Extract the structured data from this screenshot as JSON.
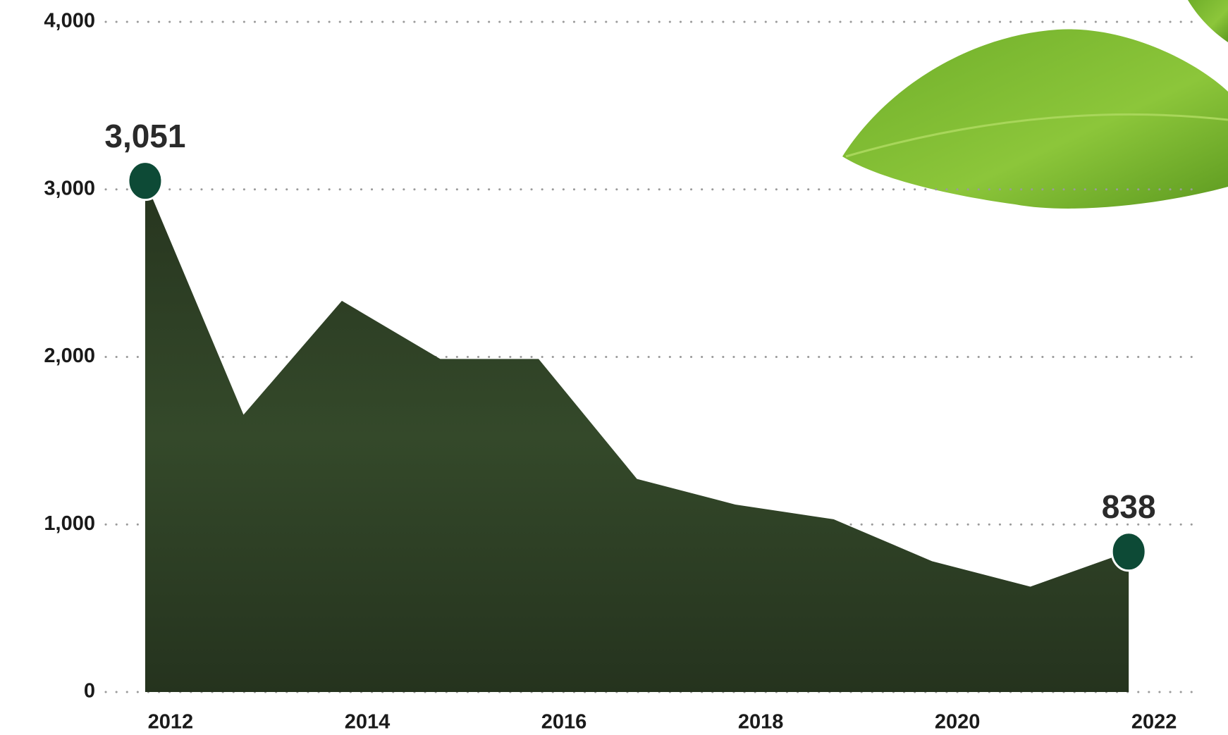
{
  "chart_data": {
    "type": "area",
    "x": [
      2012,
      2013,
      2014,
      2015,
      2016,
      2017,
      2018,
      2019,
      2020,
      2021,
      2022
    ],
    "values": [
      3051,
      1655,
      2335,
      1988,
      1988,
      1272,
      1119,
      1031,
      781,
      629,
      838
    ],
    "value_labels": [
      "3,051",
      null,
      null,
      null,
      null,
      null,
      null,
      null,
      null,
      null,
      "838"
    ],
    "color": "#2f3f2a",
    "marker_color": "#0d4a36",
    "xlim": [
      2011.85,
      2022.35
    ],
    "xticks": [
      2012,
      2014,
      2016,
      2018,
      2020,
      2022
    ],
    "ylim": [
      0,
      4000
    ],
    "yticks": [
      0,
      {
        "value": 1000,
        "label": "1,000"
      },
      {
        "value": 2000,
        "label": "2,000"
      },
      {
        "value": 3000,
        "label": "3,000"
      },
      {
        "value": 4000,
        "label": "4,000"
      }
    ],
    "grid": true
  }
}
